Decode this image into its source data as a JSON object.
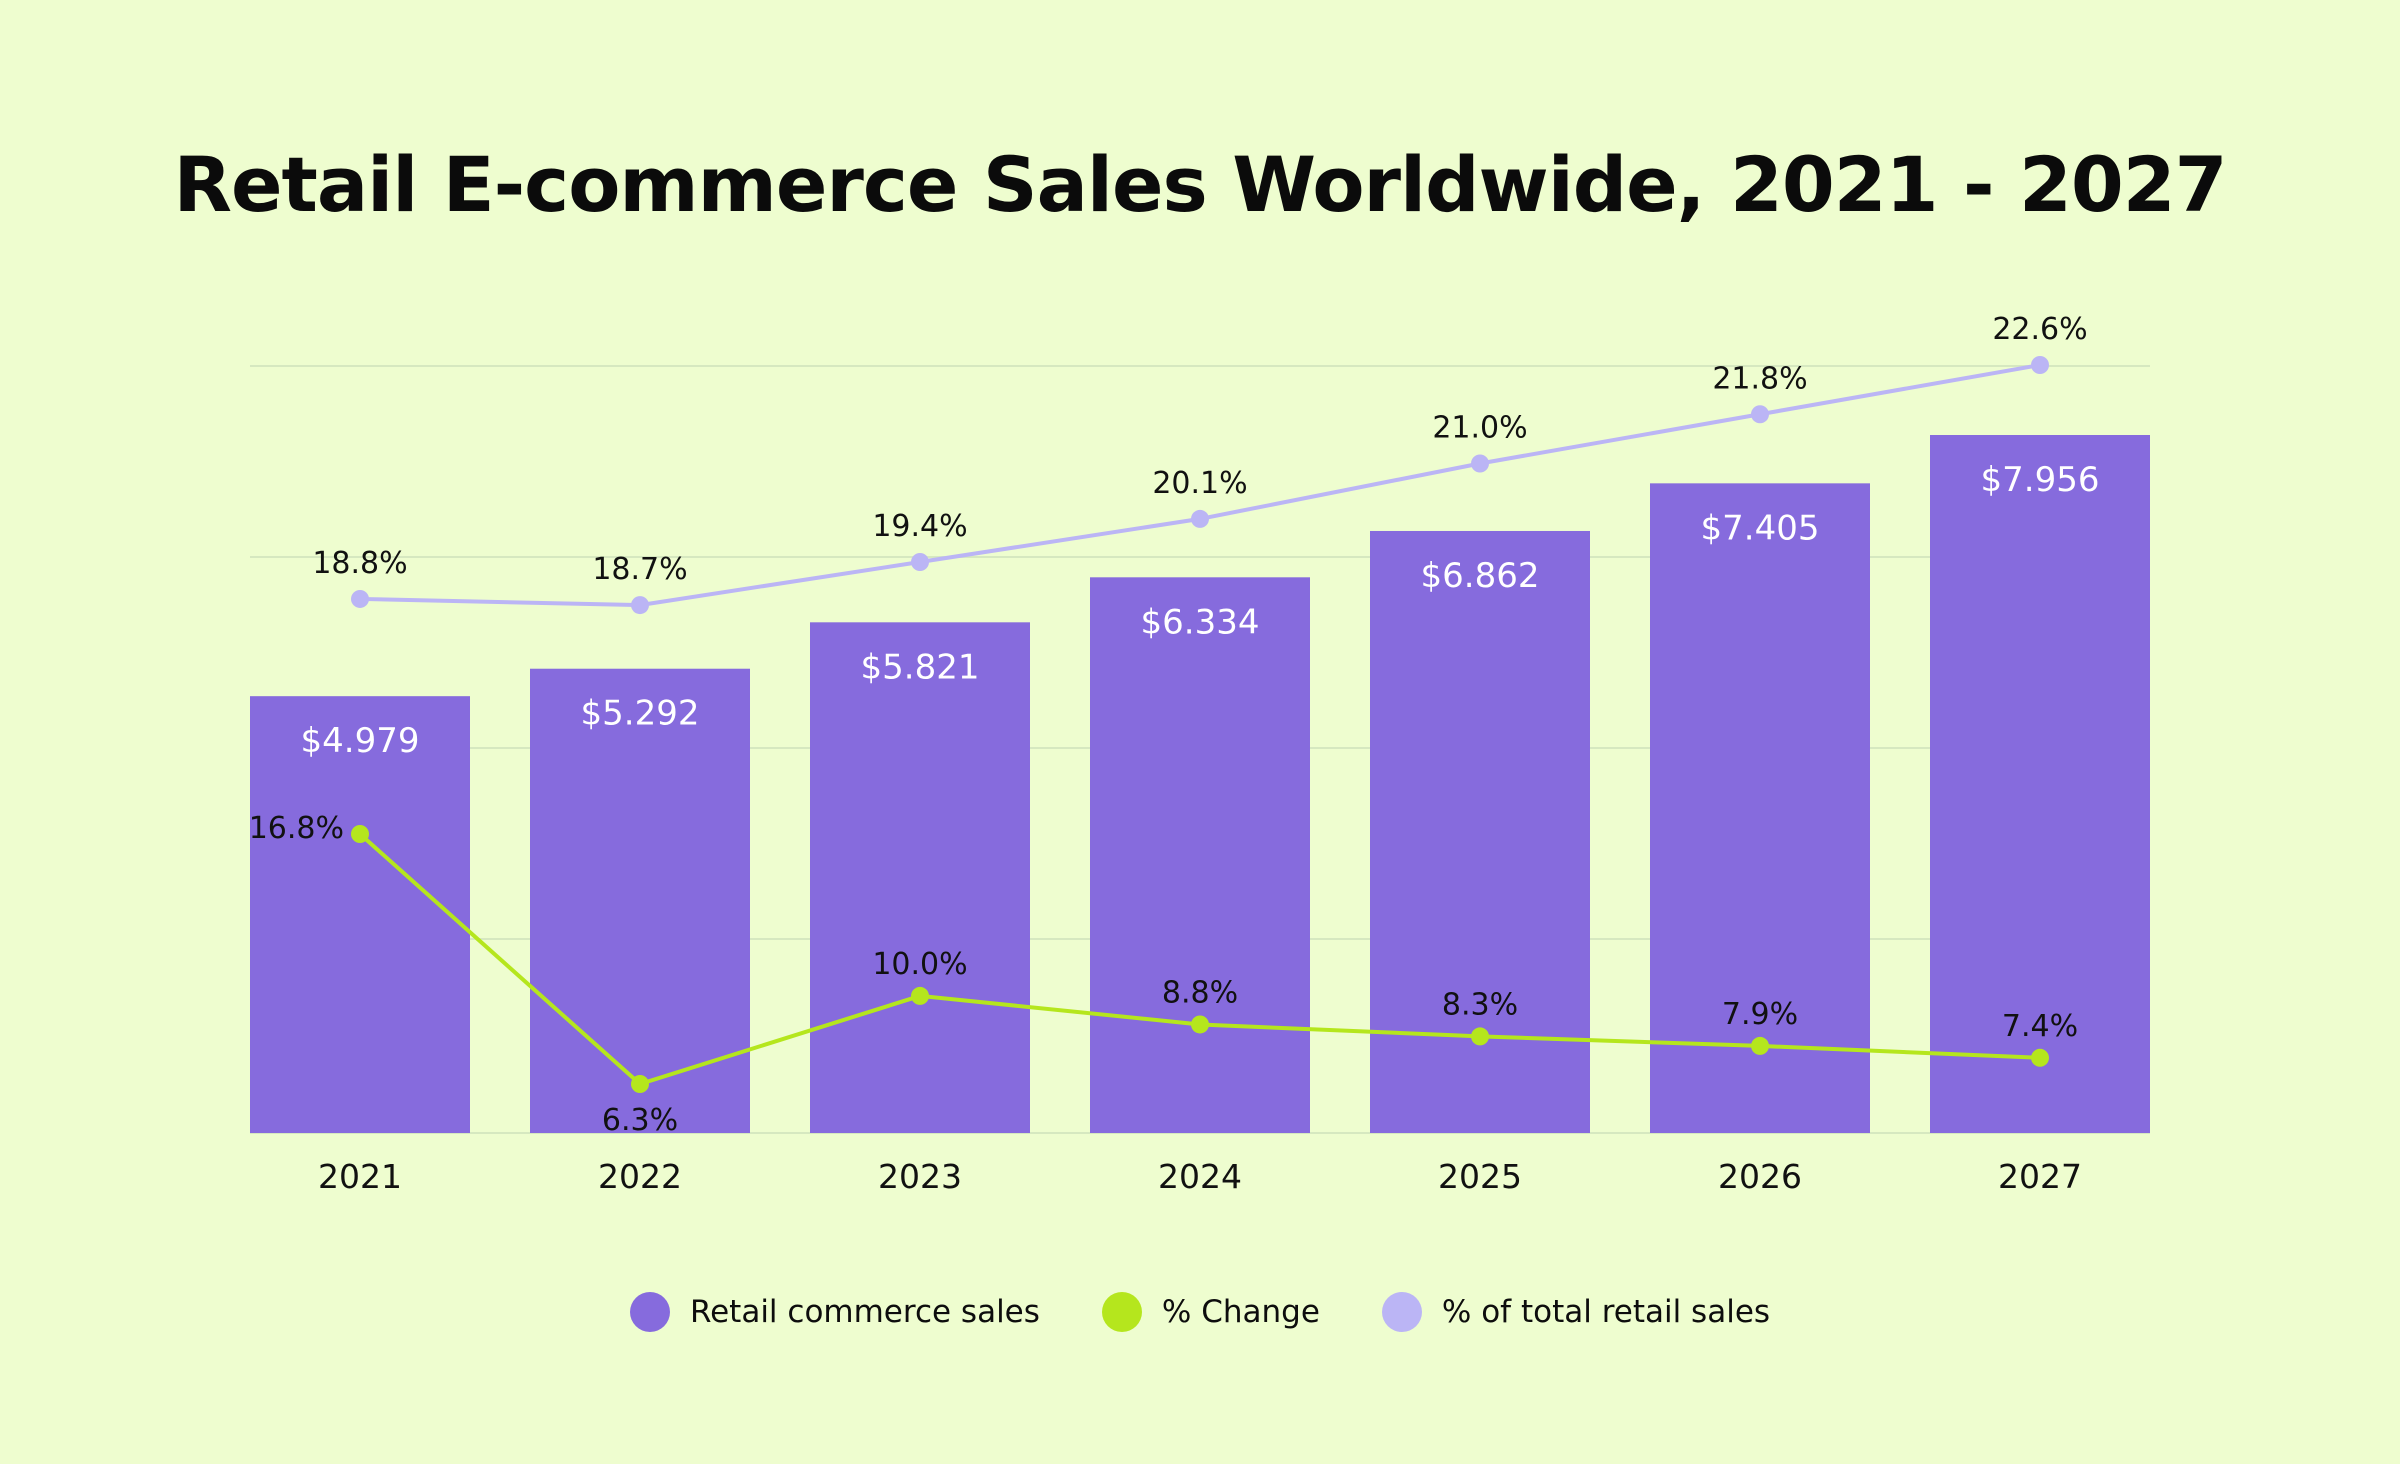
{
  "chart_data": {
    "type": "bar",
    "title": "Retail E-commerce Sales Worldwide, 2021 - 2027",
    "categories": [
      "2021",
      "2022",
      "2023",
      "2024",
      "2025",
      "2026",
      "2027"
    ],
    "series": [
      {
        "name": "Retail commerce sales",
        "type": "bar",
        "values": [
          4.979,
          5.292,
          5.821,
          6.334,
          6.862,
          7.405,
          7.956
        ],
        "labels": [
          "$4.979",
          "$5.292",
          "$5.821",
          "$6.334",
          "$6.862",
          "$7.405",
          "$7.956"
        ],
        "color": "#866BDD"
      },
      {
        "name": "% Change",
        "type": "line",
        "values": [
          16.8,
          6.3,
          10.0,
          8.8,
          8.3,
          7.9,
          7.4
        ],
        "labels": [
          "16.8%",
          "6.3%",
          "10.0%",
          "8.8%",
          "8.3%",
          "7.9%",
          "7.4%"
        ],
        "color": "#B5E61D"
      },
      {
        "name": "% of total retail sales",
        "type": "line",
        "values": [
          18.8,
          18.7,
          19.4,
          20.1,
          21.0,
          21.8,
          22.6
        ],
        "labels": [
          "18.8%",
          "18.7%",
          "19.4%",
          "20.1%",
          "21.0%",
          "21.8%",
          "22.6%"
        ],
        "color": "#BBB5F5"
      }
    ],
    "grid": true,
    "legend_position": "bottom-center"
  }
}
